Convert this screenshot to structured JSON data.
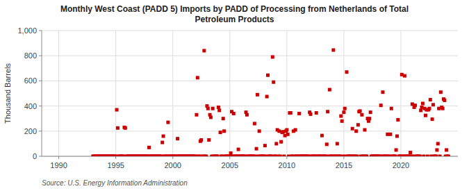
{
  "chart_data": {
    "type": "scatter",
    "title": "Monthly West Coast (PADD 5) Imports by PADD of Processing from Netherlands of Total\nPetroleum Products",
    "y_label": "Thousand Barrels",
    "annotations": [
      "Source: U.S. Energy Information Administration"
    ],
    "color": "#cc0000",
    "marker": "square",
    "grid": true,
    "xlim": [
      1988.5,
      2025.0
    ],
    "xticks": [
      1990,
      1995,
      2000,
      2005,
      2010,
      2015,
      2020
    ],
    "ylim": [
      0,
      1000
    ],
    "yticks": [
      0,
      200,
      400,
      600,
      800,
      {
        "value": 1000,
        "label": "1,000"
      }
    ],
    "x": [
      1993.0,
      1993.083,
      1993.167,
      1993.25,
      1993.333,
      1993.417,
      1993.5,
      1993.583,
      1993.667,
      1993.75,
      1993.833,
      1993.917,
      1994.0,
      1994.083,
      1994.167,
      1994.25,
      1994.333,
      1994.417,
      1994.5,
      1994.583,
      1994.667,
      1994.75,
      1994.833,
      1994.917,
      1995.0,
      1995.083,
      1995.167,
      1995.25,
      1995.333,
      1995.417,
      1995.5,
      1995.583,
      1995.667,
      1995.75,
      1995.833,
      1995.917,
      1996.0,
      1996.083,
      1996.167,
      1996.25,
      1996.333,
      1996.417,
      1996.5,
      1996.583,
      1996.667,
      1996.75,
      1996.833,
      1996.917,
      1997.0,
      1997.083,
      1997.167,
      1997.25,
      1997.333,
      1997.417,
      1997.5,
      1997.583,
      1997.667,
      1997.75,
      1997.833,
      1997.917,
      1998.0,
      1998.083,
      1998.167,
      1998.25,
      1998.333,
      1998.417,
      1998.5,
      1998.583,
      1998.667,
      1998.75,
      1998.833,
      1998.917,
      1999.0,
      1999.083,
      1999.167,
      1999.25,
      1999.333,
      1999.417,
      1999.5,
      1999.583,
      1999.667,
      1999.75,
      1999.833,
      1999.917,
      2000.0,
      2000.083,
      2000.167,
      2000.25,
      2000.333,
      2000.417,
      2000.5,
      2000.583,
      2000.667,
      2000.75,
      2000.833,
      2000.917,
      2001.0,
      2001.083,
      2001.167,
      2001.25,
      2001.333,
      2001.417,
      2001.5,
      2001.583,
      2001.667,
      2001.75,
      2001.833,
      2001.917,
      2002.0,
      2002.083,
      2002.167,
      2002.25,
      2002.333,
      2002.417,
      2002.5,
      2002.583,
      2002.667,
      2002.75,
      2002.833,
      2002.917,
      2003.0,
      2003.083,
      2003.167,
      2003.25,
      2003.333,
      2003.417,
      2003.5,
      2003.583,
      2003.667,
      2003.75,
      2003.833,
      2003.917,
      2004.0,
      2004.083,
      2004.167,
      2004.25,
      2004.333,
      2004.417,
      2004.5,
      2004.583,
      2004.667,
      2004.75,
      2004.833,
      2004.917,
      2005.0,
      2005.083,
      2005.167,
      2005.25,
      2005.333,
      2005.417,
      2005.5,
      2005.583,
      2005.667,
      2005.75,
      2005.833,
      2005.917,
      2006.0,
      2006.083,
      2006.167,
      2006.25,
      2006.333,
      2006.417,
      2006.5,
      2006.583,
      2006.667,
      2006.75,
      2006.833,
      2006.917,
      2007.0,
      2007.083,
      2007.167,
      2007.25,
      2007.333,
      2007.417,
      2007.5,
      2007.583,
      2007.667,
      2007.75,
      2007.833,
      2007.917,
      2008.0,
      2008.083,
      2008.167,
      2008.25,
      2008.333,
      2008.417,
      2008.5,
      2008.583,
      2008.667,
      2008.75,
      2008.833,
      2008.917,
      2009.0,
      2009.083,
      2009.167,
      2009.25,
      2009.333,
      2009.417,
      2009.5,
      2009.583,
      2009.667,
      2009.75,
      2009.833,
      2009.917,
      2010.0,
      2010.083,
      2010.167,
      2010.25,
      2010.333,
      2010.417,
      2010.5,
      2010.583,
      2010.667,
      2010.75,
      2010.833,
      2010.917,
      2011.0,
      2011.083,
      2011.167,
      2011.25,
      2011.333,
      2011.417,
      2011.5,
      2011.583,
      2011.667,
      2011.75,
      2011.833,
      2011.917,
      2012.0,
      2012.083,
      2012.167,
      2012.25,
      2012.333,
      2012.417,
      2012.5,
      2012.583,
      2012.667,
      2012.75,
      2012.833,
      2012.917,
      2013.0,
      2013.083,
      2013.167,
      2013.25,
      2013.333,
      2013.417,
      2013.5,
      2013.583,
      2013.667,
      2013.75,
      2013.833,
      2013.917,
      2014.0,
      2014.083,
      2014.167,
      2014.25,
      2014.333,
      2014.417,
      2014.5,
      2014.583,
      2014.667,
      2014.75,
      2014.833,
      2014.917,
      2015.0,
      2015.083,
      2015.167,
      2015.25,
      2015.333,
      2015.417,
      2015.5,
      2015.583,
      2015.667,
      2015.75,
      2015.833,
      2015.917,
      2016.0,
      2016.083,
      2016.167,
      2016.25,
      2016.333,
      2016.417,
      2016.5,
      2016.583,
      2016.667,
      2016.75,
      2016.833,
      2016.917,
      2017.0,
      2017.083,
      2017.167,
      2017.25,
      2017.333,
      2017.417,
      2017.5,
      2017.583,
      2017.667,
      2017.75,
      2017.833,
      2017.917,
      2018.0,
      2018.083,
      2018.167,
      2018.25,
      2018.333,
      2018.417,
      2018.5,
      2018.583,
      2018.667,
      2018.75,
      2018.833,
      2018.917,
      2019.0,
      2019.083,
      2019.167,
      2019.25,
      2019.333,
      2019.417,
      2019.5,
      2019.583,
      2019.667,
      2019.75,
      2019.833,
      2019.917,
      2020.0,
      2020.083,
      2020.167,
      2020.25,
      2020.333,
      2020.417,
      2020.5,
      2020.583,
      2020.667,
      2020.75,
      2020.833,
      2020.917,
      2021.0,
      2021.083,
      2021.167,
      2021.25,
      2021.333,
      2021.417,
      2021.5,
      2021.583,
      2021.667,
      2021.75,
      2021.833,
      2021.917,
      2022.0,
      2022.083,
      2022.167,
      2022.25,
      2022.333,
      2022.417,
      2022.5,
      2022.583,
      2022.667,
      2022.75,
      2022.833,
      2022.917,
      2023.0,
      2023.083,
      2023.167,
      2023.25,
      2023.333,
      2023.417,
      2023.5,
      2023.583,
      2023.667,
      2023.75,
      2023.833,
      2023.917,
      2024.0,
      2024.083,
      2024.167
    ],
    "values": [
      0,
      0,
      0,
      0,
      0,
      0,
      0,
      0,
      0,
      0,
      0,
      0,
      0,
      0,
      0,
      0,
      0,
      0,
      0,
      0,
      0,
      0,
      0,
      0,
      0,
      370,
      225,
      0,
      0,
      0,
      0,
      0,
      0,
      230,
      225,
      0,
      0,
      0,
      0,
      0,
      0,
      0,
      0,
      0,
      0,
      0,
      0,
      0,
      0,
      0,
      0,
      0,
      0,
      0,
      0,
      0,
      0,
      0,
      0,
      70,
      0,
      0,
      0,
      0,
      0,
      0,
      0,
      0,
      0,
      0,
      0,
      0,
      0,
      110,
      160,
      0,
      0,
      0,
      0,
      270,
      0,
      0,
      0,
      0,
      0,
      0,
      0,
      0,
      0,
      140,
      0,
      0,
      0,
      0,
      0,
      0,
      0,
      0,
      0,
      0,
      0,
      0,
      0,
      0,
      0,
      0,
      0,
      0,
      0,
      330,
      625,
      0,
      0,
      120,
      130,
      0,
      0,
      840,
      0,
      0,
      400,
      380,
      130,
      330,
      310,
      0,
      380,
      0,
      0,
      0,
      0,
      0,
      390,
      365,
      190,
      0,
      0,
      300,
      200,
      0,
      0,
      0,
      0,
      0,
      0,
      25,
      355,
      0,
      340,
      0,
      0,
      0,
      0,
      55,
      0,
      0,
      0,
      0,
      0,
      0,
      0,
      350,
      330,
      0,
      0,
      0,
      0,
      0,
      0,
      0,
      260,
      0,
      60,
      490,
      0,
      200,
      0,
      0,
      0,
      0,
      0,
      85,
      0,
      475,
      645,
      0,
      0,
      0,
      0,
      790,
      590,
      0,
      0,
      100,
      210,
      0,
      200,
      0,
      115,
      190,
      195,
      0,
      165,
      200,
      210,
      175,
      0,
      345,
      345,
      0,
      0,
      200,
      0,
      210,
      0,
      0,
      0,
      340,
      0,
      0,
      0,
      0,
      0,
      0,
      0,
      0,
      0,
      0,
      350,
      335,
      0,
      0,
      0,
      0,
      0,
      345,
      0,
      0,
      0,
      0,
      0,
      165,
      0,
      0,
      0,
      0,
      95,
      355,
      0,
      530,
      0,
      0,
      0,
      845,
      0,
      0,
      0,
      100,
      0,
      0,
      0,
      320,
      280,
      0,
      350,
      380,
      0,
      670,
      0,
      0,
      0,
      0,
      0,
      220,
      0,
      0,
      0,
      200,
      0,
      250,
      355,
      360,
      0,
      330,
      0,
      0,
      210,
      0,
      0,
      300,
      280,
      300,
      350,
      0,
      0,
      0,
      0,
      0,
      0,
      0,
      0,
      0,
      0,
      405,
      0,
      510,
      0,
      0,
      0,
      0,
      175,
      0,
      0,
      175,
      380,
      0,
      0,
      0,
      0,
      50,
      160,
      290,
      0,
      0,
      0,
      650,
      0,
      0,
      640,
      0,
      0,
      0,
      0,
      0,
      30,
      0,
      415,
      0,
      390,
      405,
      0,
      0,
      0,
      0,
      0,
      365,
      390,
      420,
      0,
      380,
      325,
      370,
      0,
      370,
      380,
      450,
      0,
      295,
      410,
      0,
      0,
      0,
      50,
      100,
      380,
      0,
      510,
      390,
      380,
      455,
      445,
      0,
      50,
      0,
      0
    ]
  }
}
